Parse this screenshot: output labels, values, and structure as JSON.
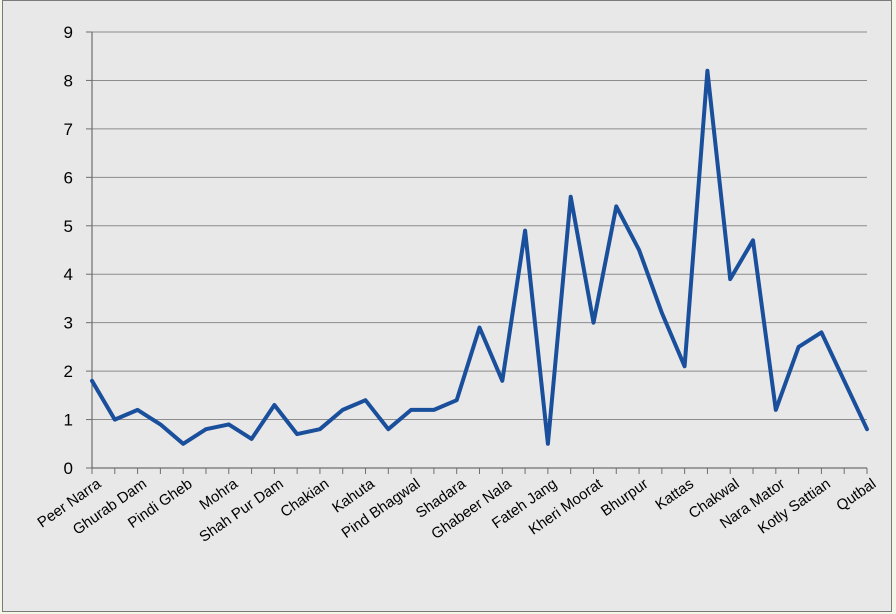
{
  "chart_data": {
    "type": "line",
    "title": "",
    "xlabel": "",
    "ylabel": "",
    "ylim": [
      0,
      9
    ],
    "yticks": [
      0,
      1,
      2,
      3,
      4,
      5,
      6,
      7,
      8,
      9
    ],
    "grid": true,
    "legend": "none",
    "colors": {
      "line": "#1a4f9c",
      "grid": "#8c8c8c",
      "background": "#e8e8e8"
    },
    "labeled_categories": [
      "Peer Narra",
      "Ghurab Dam",
      "Pindi Gheb",
      "Mohra",
      "Shah Pur Dam",
      "Chakian",
      "Kahuta",
      "Pind Bhagwal",
      "Shadara",
      "Ghabeer Nala",
      "Fateh Jang",
      "Kheri Moorat",
      "Bhurpur",
      "Kattas",
      "Chakwal",
      "Nara Mator",
      "Kotly Sattian",
      "Qutbal"
    ],
    "label_every": 2,
    "values": [
      1.8,
      1.0,
      1.2,
      0.9,
      0.5,
      0.8,
      0.9,
      0.6,
      1.3,
      0.7,
      0.8,
      1.2,
      1.4,
      0.8,
      1.2,
      1.2,
      1.4,
      2.9,
      1.8,
      4.9,
      0.5,
      5.6,
      3.0,
      5.4,
      4.5,
      3.2,
      2.1,
      8.2,
      3.9,
      4.7,
      1.2,
      2.5,
      2.8,
      1.8,
      0.8
    ]
  }
}
